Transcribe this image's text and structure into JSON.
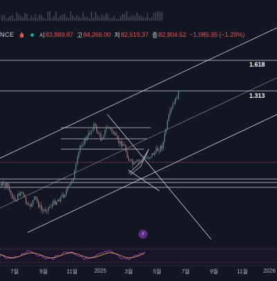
{
  "header": {
    "symbol": "NCE",
    "open_label": "시",
    "open_value": "83,889.87",
    "high_label": "고",
    "high_value": "84,266.00",
    "low_label": "저",
    "low_value": "82,519.37",
    "close_label": "종",
    "close_value": "82,804.52",
    "change": "−1,085.35 (−1.29%)"
  },
  "fib_levels": [
    "1.618",
    "1.313"
  ],
  "x_ticks": [
    "7월",
    "9월",
    "11월",
    "2025",
    "3월",
    "5월",
    "7월",
    "9월",
    "11월",
    "2026"
  ],
  "badge_icon": "lightning-icon",
  "colors": {
    "background": "#131722",
    "up": "#26a69a",
    "down": "#ef5350",
    "line": "#d1d4dc",
    "rsi": "#ab47bc"
  },
  "chart_data": {
    "type": "candlestick",
    "title": "",
    "legend": "none",
    "y_scale": "log",
    "price_path": [
      [
        "2024-06",
        64000
      ],
      [
        "2024-07",
        58000
      ],
      [
        "2024-08",
        55000
      ],
      [
        "2024-09",
        60000
      ],
      [
        "2024-10",
        68000
      ],
      [
        "2024-11",
        95000
      ],
      [
        "2024-12",
        100000
      ],
      [
        "2025-01",
        102000
      ],
      [
        "2025-02",
        95000
      ],
      [
        "2025-03",
        82000
      ],
      [
        "2025-04",
        85000
      ],
      [
        "2025-05",
        104000
      ],
      [
        "2025-06",
        108000
      ],
      [
        "2025-07",
        118000
      ]
    ],
    "fib_lines": [
      {
        "label": "1.618"
      },
      {
        "label": "1.313"
      }
    ],
    "x_tick_labels": [
      "7월",
      "9월",
      "11월",
      "2025",
      "3월",
      "5월",
      "7월",
      "9월",
      "11월",
      "2026"
    ]
  }
}
